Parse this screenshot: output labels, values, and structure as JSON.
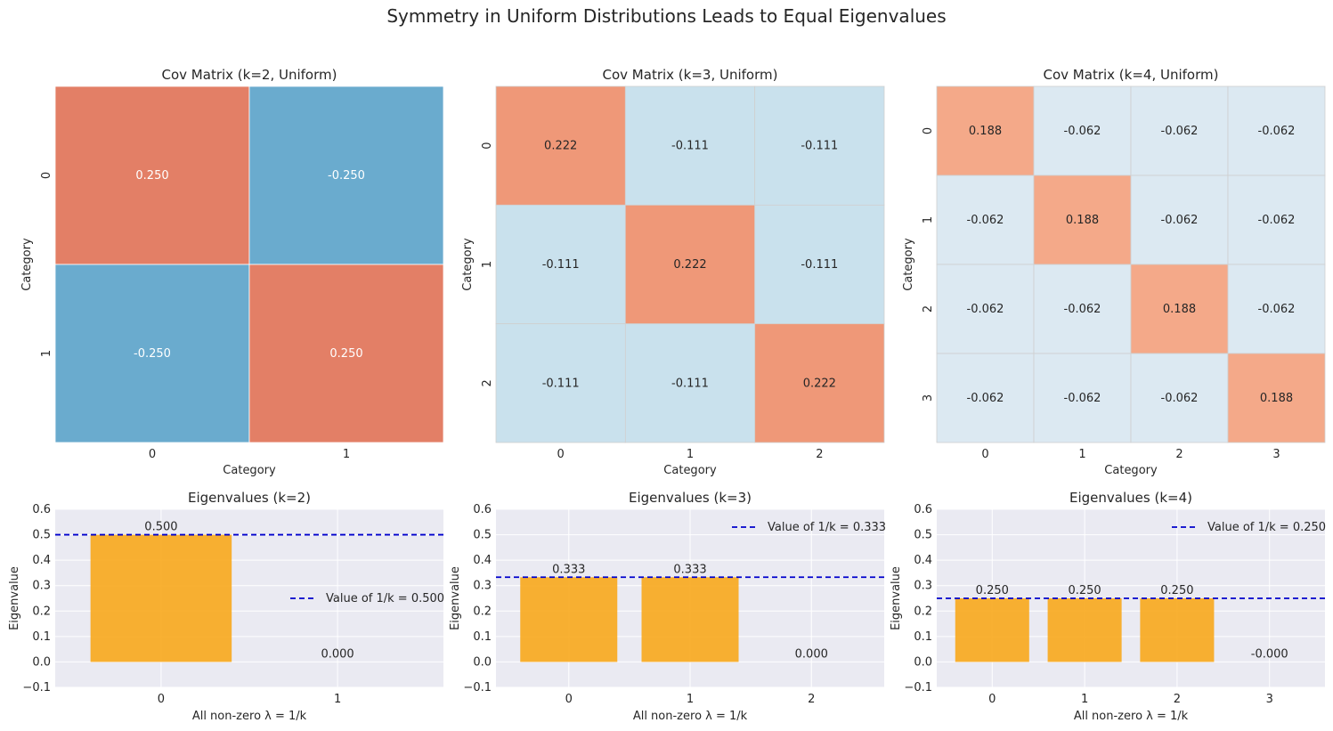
{
  "figure": {
    "suptitle": "Symmetry in Uniform Distributions Leads to Equal Eigenvalues"
  },
  "colors": {
    "positive_strong": "#e37f66",
    "negative_strong": "#6aabce",
    "k3_pos": "#ef9878",
    "k3_neg": "#c9e1ed",
    "k4_pos": "#f4a989",
    "k4_neg": "#dce9f2",
    "bar": "#f8a91c",
    "ref_line": "#0000cc",
    "axes_bg": "#eaeaf2"
  },
  "chart_data": [
    {
      "type": "heatmap",
      "title": "Cov Matrix (k=2, Uniform)",
      "xlabel": "Category",
      "ylabel": "Category",
      "x_ticks": [
        "0",
        "1"
      ],
      "y_ticks": [
        "0",
        "1"
      ],
      "values": [
        [
          0.25,
          -0.25
        ],
        [
          -0.25,
          0.25
        ]
      ],
      "labels": [
        [
          "0.250",
          "-0.250"
        ],
        [
          "-0.250",
          "0.250"
        ]
      ]
    },
    {
      "type": "heatmap",
      "title": "Cov Matrix (k=3, Uniform)",
      "xlabel": "Category",
      "ylabel": "Category",
      "x_ticks": [
        "0",
        "1",
        "2"
      ],
      "y_ticks": [
        "0",
        "1",
        "2"
      ],
      "values": [
        [
          0.222,
          -0.111,
          -0.111
        ],
        [
          -0.111,
          0.222,
          -0.111
        ],
        [
          -0.111,
          -0.111,
          0.222
        ]
      ],
      "labels": [
        [
          "0.222",
          "-0.111",
          "-0.111"
        ],
        [
          "-0.111",
          "0.222",
          "-0.111"
        ],
        [
          "-0.111",
          "-0.111",
          "0.222"
        ]
      ]
    },
    {
      "type": "heatmap",
      "title": "Cov Matrix (k=4, Uniform)",
      "xlabel": "Category",
      "ylabel": "Category",
      "x_ticks": [
        "0",
        "1",
        "2",
        "3"
      ],
      "y_ticks": [
        "0",
        "1",
        "2",
        "3"
      ],
      "values": [
        [
          0.188,
          -0.062,
          -0.062,
          -0.062
        ],
        [
          -0.062,
          0.188,
          -0.062,
          -0.062
        ],
        [
          -0.062,
          -0.062,
          0.188,
          -0.062
        ],
        [
          -0.062,
          -0.062,
          -0.062,
          0.188
        ]
      ],
      "labels": [
        [
          "0.188",
          "-0.062",
          "-0.062",
          "-0.062"
        ],
        [
          "-0.062",
          "0.188",
          "-0.062",
          "-0.062"
        ],
        [
          "-0.062",
          "-0.062",
          "0.188",
          "-0.062"
        ],
        [
          "-0.062",
          "-0.062",
          "-0.062",
          "0.188"
        ]
      ]
    },
    {
      "type": "bar",
      "title": "Eigenvalues (k=2)",
      "xlabel": "All non-zero λ = 1/k",
      "ylabel": "Eigenvalue",
      "categories": [
        "0",
        "1"
      ],
      "values": [
        0.5,
        0.0
      ],
      "value_labels": [
        "0.500",
        "0.000"
      ],
      "ylim": [
        -0.1,
        0.6
      ],
      "yticks": [
        "−0.1",
        "0.0",
        "0.1",
        "0.2",
        "0.3",
        "0.4",
        "0.5",
        "0.6"
      ],
      "ref_line": 0.5,
      "legend": "Value of 1/k = 0.500",
      "legend_position": "center-right"
    },
    {
      "type": "bar",
      "title": "Eigenvalues (k=3)",
      "xlabel": "All non-zero λ = 1/k",
      "ylabel": "Eigenvalue",
      "categories": [
        "0",
        "1",
        "2"
      ],
      "values": [
        0.333,
        0.333,
        0.0
      ],
      "value_labels": [
        "0.333",
        "0.333",
        "0.000"
      ],
      "ylim": [
        -0.1,
        0.6
      ],
      "yticks": [
        "−0.1",
        "0.0",
        "0.1",
        "0.2",
        "0.3",
        "0.4",
        "0.5",
        "0.6"
      ],
      "ref_line": 0.333,
      "legend": "Value of 1/k = 0.333",
      "legend_position": "top-right"
    },
    {
      "type": "bar",
      "title": "Eigenvalues (k=4)",
      "xlabel": "All non-zero λ = 1/k",
      "ylabel": "Eigenvalue",
      "categories": [
        "0",
        "1",
        "2",
        "3"
      ],
      "values": [
        0.25,
        0.25,
        0.25,
        0.0
      ],
      "value_labels": [
        "0.250",
        "0.250",
        "0.250",
        "-0.000"
      ],
      "ylim": [
        -0.1,
        0.6
      ],
      "yticks": [
        "−0.1",
        "0.0",
        "0.1",
        "0.2",
        "0.3",
        "0.4",
        "0.5",
        "0.6"
      ],
      "ref_line": 0.25,
      "legend": "Value of 1/k = 0.250",
      "legend_position": "top-right"
    }
  ]
}
